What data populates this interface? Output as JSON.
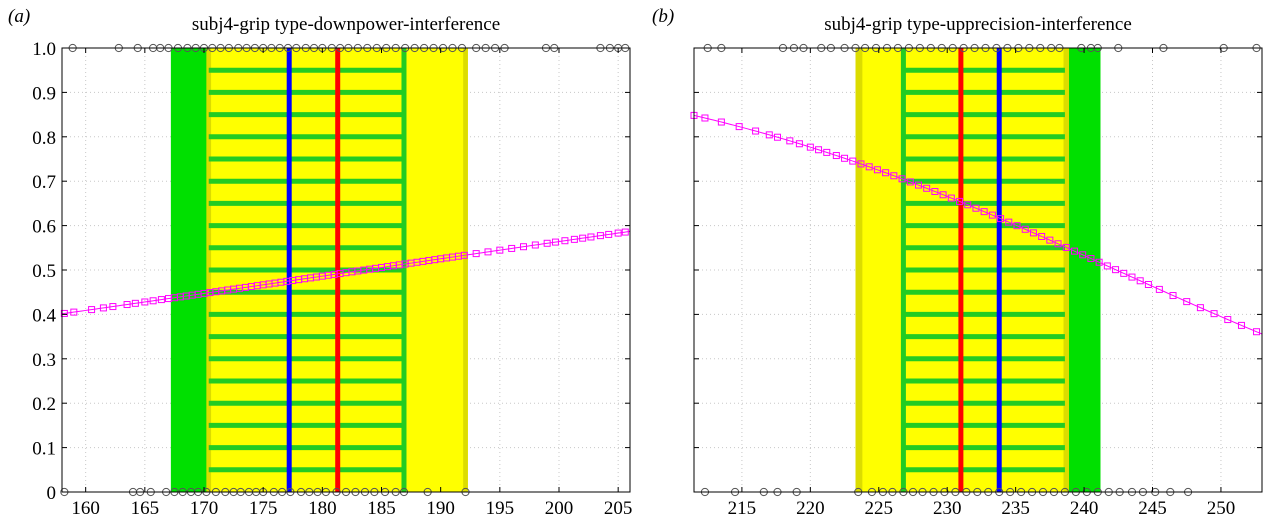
{
  "chart_data": [
    {
      "type": "line",
      "panel_label": "(a)",
      "title": "subj4-grip type-downpower-interference",
      "xlim": [
        158,
        206
      ],
      "ylim": [
        0,
        1
      ],
      "xticks": [
        160,
        165,
        170,
        175,
        180,
        185,
        190,
        195,
        200,
        205
      ],
      "yticks": [
        0,
        0.1,
        0.2,
        0.3,
        0.4,
        0.5,
        0.6,
        0.7,
        0.8,
        0.9,
        1.0
      ],
      "ytick_labels": [
        "0",
        "0.1",
        "0.2",
        "0.3",
        "0.4",
        "0.5",
        "0.6",
        "0.7",
        "0.8",
        "0.9",
        "1.0"
      ],
      "grid": true,
      "bands": [
        {
          "color": "#00e000",
          "x0": 167.2,
          "x1": 170.4
        },
        {
          "color": "#ffff00",
          "x0": 170.4,
          "x1": 192.3
        },
        {
          "color": "#dcdc00",
          "x0": 170.2,
          "x1": 170.6
        },
        {
          "color": "#dcdc00",
          "x0": 191.9,
          "x1": 192.3
        }
      ],
      "ladder": {
        "color": "#22cc22",
        "x0": 170.4,
        "x1": 186.9,
        "rungs_from": 0.05,
        "rungs_to": 0.95,
        "rung_step": 0.05
      },
      "vlines": [
        {
          "color": "#0000ff",
          "x": 177.2
        },
        {
          "color": "#ff0000",
          "x": 181.3
        },
        {
          "color": "#22cc22",
          "x": 186.9
        }
      ],
      "fit": {
        "color": "#ff00ff",
        "model": "logistic",
        "a": -2.8717,
        "b": 0.015646
      },
      "observations_y0_x": [
        158.2,
        164.0,
        164.6,
        165.5,
        166.8,
        167.5,
        168.2,
        168.9,
        169.5,
        170.2,
        171.0,
        171.8,
        172.5,
        173.1,
        173.8,
        174.4,
        175.0,
        175.9,
        176.6,
        177.3,
        178.2,
        178.9,
        179.6,
        180.3,
        181.2,
        182.0,
        182.8,
        183.6,
        184.4,
        185.3,
        186.2,
        186.9,
        188.9,
        192.1
      ],
      "observations_y1_x": [
        158.9,
        162.8,
        164.4,
        165.7,
        166.3,
        167.0,
        167.8,
        168.6,
        169.3,
        170.0,
        170.7,
        171.4,
        172.1,
        172.9,
        173.6,
        174.3,
        175.0,
        175.7,
        176.4,
        177.1,
        177.8,
        178.6,
        179.3,
        180.0,
        180.8,
        181.5,
        182.2,
        183.0,
        183.8,
        184.6,
        185.4,
        186.2,
        187.0,
        187.8,
        188.6,
        189.4,
        190.2,
        191.0,
        191.8,
        193.0,
        193.8,
        194.6,
        195.4,
        198.9,
        199.6,
        203.5,
        204.3,
        205.0,
        205.6
      ],
      "fit_marker_x": [
        158.2,
        159.0,
        160.5,
        161.5,
        162.3,
        163.5,
        164.2,
        165.0,
        165.7,
        166.4,
        167.0,
        167.5,
        168.0,
        168.5,
        169.0,
        169.5,
        170.0,
        170.5,
        171.0,
        171.5,
        172.0,
        172.5,
        173.0,
        173.5,
        174.0,
        174.5,
        175.0,
        175.5,
        176.0,
        176.5,
        177.0,
        177.5,
        178.0,
        178.5,
        179.0,
        179.5,
        180.0,
        180.5,
        181.0,
        181.5,
        182.0,
        182.5,
        183.0,
        183.5,
        184.0,
        184.5,
        185.0,
        185.5,
        186.0,
        186.5,
        187.0,
        187.5,
        188.0,
        188.5,
        189.0,
        189.5,
        190.0,
        190.5,
        191.0,
        191.5,
        192.0,
        193.0,
        194.0,
        195.0,
        196.0,
        197.0,
        198.0,
        199.0,
        199.7,
        200.5,
        201.3,
        202.0,
        202.7,
        203.5,
        204.2,
        205.0,
        205.6
      ]
    },
    {
      "type": "line",
      "panel_label": "(b)",
      "title": "subj4-grip type-upprecision-interference",
      "xlim": [
        211.5,
        253
      ],
      "ylim": [
        0,
        1
      ],
      "xticks": [
        215,
        220,
        225,
        230,
        235,
        240,
        245,
        250
      ],
      "yticks": [
        0,
        0.1,
        0.2,
        0.3,
        0.4,
        0.5,
        0.6,
        0.7,
        0.8,
        0.9,
        1.0
      ],
      "grid": true,
      "bands": [
        {
          "color": "#00e000",
          "x0": 238.8,
          "x1": 241.2
        },
        {
          "color": "#ffff00",
          "x0": 223.3,
          "x1": 238.8
        },
        {
          "color": "#dcdc00",
          "x0": 223.3,
          "x1": 223.8
        },
        {
          "color": "#dcdc00",
          "x0": 238.5,
          "x1": 238.9
        }
      ],
      "ladder": {
        "color": "#22cc22",
        "x0": 226.8,
        "x1": 238.6,
        "rungs_from": 0.05,
        "rungs_to": 0.95,
        "rung_step": 0.05
      },
      "vlines": [
        {
          "color": "#ff0000",
          "x": 231.0
        },
        {
          "color": "#0000ff",
          "x": 233.8
        },
        {
          "color": "#22cc22",
          "x": 226.8
        }
      ],
      "fit": {
        "color": "#ff00ff",
        "model": "logistic",
        "a": 13.5133,
        "b": -0.055758
      },
      "observations_y0_x": [
        212.3,
        214.5,
        216.6,
        217.6,
        219.0,
        223.5,
        224.5,
        225.3,
        226.0,
        226.8,
        227.5,
        228.2,
        229.0,
        229.8,
        230.6,
        231.4,
        232.2,
        233.0,
        233.8,
        234.6,
        235.4,
        236.2,
        237.0,
        237.8,
        238.6,
        239.4,
        240.2,
        241.0,
        241.8,
        242.6,
        243.5,
        244.3,
        245.2,
        246.3,
        247.6
      ],
      "observations_y1_x": [
        212.5,
        213.5,
        218.0,
        218.8,
        219.5,
        220.8,
        221.5,
        222.5,
        223.3,
        224.0,
        224.8,
        225.6,
        226.4,
        227.2,
        228.0,
        228.8,
        229.6,
        230.4,
        231.2,
        232.0,
        232.8,
        233.6,
        234.4,
        235.2,
        236.0,
        236.8,
        237.6,
        238.2,
        239.8,
        240.5,
        241.0,
        242.5,
        245.8,
        250.2,
        252.6
      ],
      "fit_marker_x": [
        211.5,
        212.3,
        213.5,
        214.8,
        216.0,
        217.0,
        217.6,
        218.5,
        219.2,
        220.0,
        220.6,
        221.2,
        221.9,
        222.5,
        223.1,
        223.7,
        224.3,
        224.9,
        225.5,
        226.1,
        226.7,
        227.3,
        227.9,
        228.5,
        229.1,
        229.7,
        230.3,
        230.9,
        231.5,
        232.1,
        232.7,
        233.3,
        233.9,
        234.5,
        235.1,
        235.7,
        236.3,
        236.9,
        237.5,
        238.1,
        238.7,
        239.3,
        239.9,
        240.5,
        241.1,
        241.7,
        242.3,
        242.9,
        243.5,
        244.1,
        244.7,
        245.5,
        246.5,
        247.5,
        248.5,
        249.5,
        250.5,
        251.5,
        252.6
      ]
    }
  ]
}
